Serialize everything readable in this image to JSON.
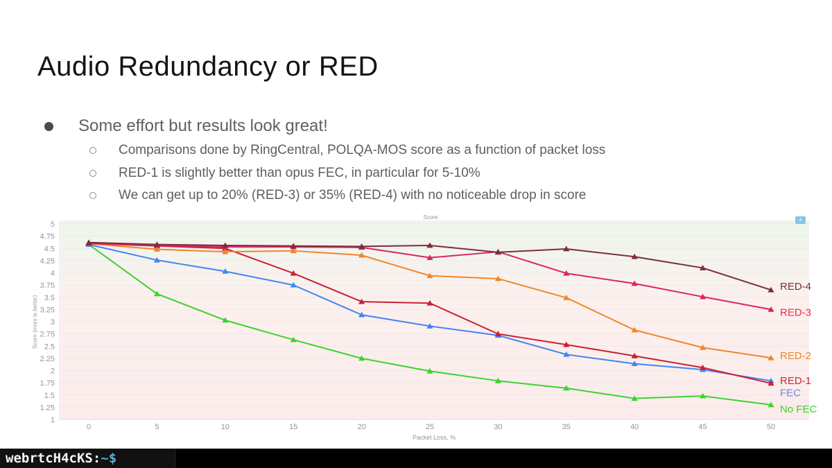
{
  "slide": {
    "title": "Audio Redundancy or RED",
    "bullet": "Some effort but results look great!",
    "sub_bullets": [
      "Comparisons done by RingCentral, POLQA-MOS score as a function of packet loss",
      "RED-1 is slightly better than opus FEC, in particular for 5-10%",
      "We can get up to 20% (RED-3) or 35% (RED-4) with no noticeable drop in score"
    ]
  },
  "chart_ui": {
    "toolbar_icon": "plus-icon",
    "toolbar_color": "#87c5e8"
  },
  "chart_data": {
    "type": "line",
    "title": "Score",
    "xlabel": "Packet Loss, %",
    "ylabel": "Score (more is better)",
    "x": [
      0,
      5,
      10,
      15,
      20,
      25,
      30,
      35,
      40,
      45,
      50
    ],
    "xlim": [
      -2.2,
      52
    ],
    "ylim": [
      1,
      5
    ],
    "ytick_step": 0.25,
    "yticks": [
      5,
      4.75,
      4.5,
      4.25,
      4,
      3.75,
      3.5,
      3.25,
      3,
      2.75,
      2.5,
      2.25,
      2,
      1.75,
      1.5,
      1.25,
      1
    ],
    "grid": true,
    "legend_position": "right-inline-labels",
    "marker": "triangle-up",
    "axis_text_color": "#949494",
    "bg_gradient": [
      "#ecf6ec",
      "#f6f3ee",
      "#fcf0ee",
      "#fbeceb"
    ],
    "series": [
      {
        "name": "RED-4",
        "color": "#7b2d3e",
        "label_color": "#7b2d3e",
        "label_dy": -5,
        "values": [
          4.62,
          4.58,
          4.56,
          4.55,
          4.54,
          4.56,
          4.42,
          4.49,
          4.33,
          4.1,
          3.65
        ]
      },
      {
        "name": "RED-3",
        "color": "#da2563",
        "label_color": "#ee2b4e",
        "label_dy": 4,
        "values": [
          4.6,
          4.56,
          4.53,
          4.53,
          4.52,
          4.31,
          4.43,
          3.99,
          3.78,
          3.51,
          3.25
        ]
      },
      {
        "name": "RED-2",
        "color": "#f0862a",
        "label_color": "#f0862a",
        "label_dy": -3,
        "values": [
          4.6,
          4.48,
          4.43,
          4.45,
          4.36,
          3.94,
          3.88,
          3.49,
          2.83,
          2.47,
          2.26
        ]
      },
      {
        "name": "RED-1",
        "color": "#c92133",
        "label_color": "#c7293a",
        "label_dy": -4,
        "values": [
          4.6,
          4.55,
          4.5,
          3.99,
          3.41,
          3.38,
          2.75,
          2.53,
          2.3,
          2.06,
          1.74
        ]
      },
      {
        "name": "FEC",
        "color": "#4285f4",
        "label_color": "#6d87e6",
        "label_dy": 17,
        "values": [
          4.58,
          4.26,
          4.03,
          3.75,
          3.14,
          2.91,
          2.72,
          2.33,
          2.14,
          2.02,
          1.79
        ]
      },
      {
        "name": "No FEC",
        "color": "#3bd32f",
        "label_color": "#3bd32f",
        "label_dy": 6,
        "values": [
          4.58,
          3.57,
          3.03,
          2.63,
          2.25,
          1.99,
          1.79,
          1.64,
          1.43,
          1.48,
          1.3
        ]
      }
    ]
  },
  "terminal": {
    "prompt_host": "webrtcH4cKS:",
    "prompt_symbol": "~$",
    "host_color": "#f5f5f5",
    "symbol_color": "#5fa8d8",
    "bar_color": "#000000"
  }
}
